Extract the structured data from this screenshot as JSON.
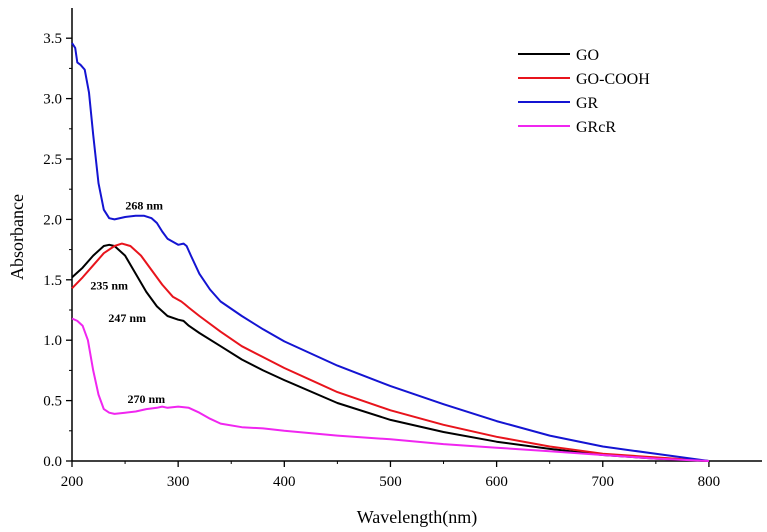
{
  "chart_data": {
    "type": "line",
    "title": "",
    "xlabel": "Wavelength(nm)",
    "ylabel": "Absorbance",
    "xlim": [
      200,
      850
    ],
    "ylim": [
      0,
      3.75
    ],
    "xticks": [
      200,
      300,
      400,
      500,
      600,
      700,
      800
    ],
    "xtick_labels": [
      "200",
      "300",
      "400",
      "500",
      "600",
      "700",
      "800"
    ],
    "yticks": [
      0,
      0.5,
      1.0,
      1.5,
      2.0,
      2.5,
      3.0,
      3.5
    ],
    "ytick_labels": [
      "0.0",
      "0.5",
      "1.0",
      "1.5",
      "2.0",
      "2.5",
      "3.0",
      "3.5"
    ],
    "grid": false,
    "legend_position": "top-right",
    "series": [
      {
        "name": "GO",
        "color": "#000000",
        "points": [
          [
            200,
            1.52
          ],
          [
            210,
            1.6
          ],
          [
            220,
            1.7
          ],
          [
            230,
            1.78
          ],
          [
            235,
            1.79
          ],
          [
            240,
            1.78
          ],
          [
            250,
            1.7
          ],
          [
            260,
            1.55
          ],
          [
            270,
            1.4
          ],
          [
            280,
            1.28
          ],
          [
            290,
            1.2
          ],
          [
            300,
            1.17
          ],
          [
            305,
            1.16
          ],
          [
            310,
            1.12
          ],
          [
            320,
            1.06
          ],
          [
            340,
            0.95
          ],
          [
            360,
            0.84
          ],
          [
            380,
            0.75
          ],
          [
            400,
            0.67
          ],
          [
            450,
            0.48
          ],
          [
            500,
            0.34
          ],
          [
            550,
            0.24
          ],
          [
            600,
            0.16
          ],
          [
            650,
            0.1
          ],
          [
            700,
            0.05
          ],
          [
            750,
            0.02
          ],
          [
            800,
            0.0
          ]
        ]
      },
      {
        "name": "GO-COOH",
        "color": "#e8141c",
        "points": [
          [
            200,
            1.43
          ],
          [
            210,
            1.52
          ],
          [
            220,
            1.62
          ],
          [
            230,
            1.72
          ],
          [
            240,
            1.78
          ],
          [
            247,
            1.8
          ],
          [
            255,
            1.78
          ],
          [
            265,
            1.7
          ],
          [
            275,
            1.58
          ],
          [
            285,
            1.46
          ],
          [
            295,
            1.36
          ],
          [
            303,
            1.32
          ],
          [
            306,
            1.3
          ],
          [
            310,
            1.27
          ],
          [
            320,
            1.2
          ],
          [
            340,
            1.07
          ],
          [
            360,
            0.95
          ],
          [
            380,
            0.86
          ],
          [
            400,
            0.77
          ],
          [
            450,
            0.57
          ],
          [
            500,
            0.42
          ],
          [
            550,
            0.3
          ],
          [
            600,
            0.2
          ],
          [
            650,
            0.12
          ],
          [
            700,
            0.06
          ],
          [
            750,
            0.03
          ],
          [
            800,
            0.0
          ]
        ]
      },
      {
        "name": "GR",
        "color": "#1414d2",
        "points": [
          [
            200,
            3.46
          ],
          [
            203,
            3.42
          ],
          [
            205,
            3.3
          ],
          [
            208,
            3.28
          ],
          [
            212,
            3.24
          ],
          [
            216,
            3.05
          ],
          [
            220,
            2.7
          ],
          [
            225,
            2.3
          ],
          [
            230,
            2.08
          ],
          [
            235,
            2.01
          ],
          [
            240,
            2.0
          ],
          [
            250,
            2.02
          ],
          [
            260,
            2.03
          ],
          [
            268,
            2.03
          ],
          [
            275,
            2.01
          ],
          [
            280,
            1.97
          ],
          [
            285,
            1.9
          ],
          [
            290,
            1.84
          ],
          [
            300,
            1.79
          ],
          [
            305,
            1.8
          ],
          [
            308,
            1.78
          ],
          [
            312,
            1.7
          ],
          [
            320,
            1.55
          ],
          [
            330,
            1.42
          ],
          [
            340,
            1.32
          ],
          [
            360,
            1.2
          ],
          [
            380,
            1.09
          ],
          [
            400,
            0.99
          ],
          [
            450,
            0.79
          ],
          [
            500,
            0.62
          ],
          [
            550,
            0.47
          ],
          [
            600,
            0.33
          ],
          [
            650,
            0.21
          ],
          [
            700,
            0.12
          ],
          [
            750,
            0.06
          ],
          [
            800,
            0.0
          ]
        ]
      },
      {
        "name": "GRcR",
        "color": "#f026f0",
        "points": [
          [
            200,
            1.18
          ],
          [
            205,
            1.16
          ],
          [
            210,
            1.12
          ],
          [
            215,
            1.0
          ],
          [
            220,
            0.75
          ],
          [
            225,
            0.55
          ],
          [
            230,
            0.43
          ],
          [
            235,
            0.4
          ],
          [
            240,
            0.39
          ],
          [
            250,
            0.4
          ],
          [
            260,
            0.41
          ],
          [
            270,
            0.43
          ],
          [
            280,
            0.44
          ],
          [
            285,
            0.45
          ],
          [
            290,
            0.44
          ],
          [
            300,
            0.45
          ],
          [
            310,
            0.44
          ],
          [
            320,
            0.4
          ],
          [
            330,
            0.35
          ],
          [
            340,
            0.31
          ],
          [
            360,
            0.28
          ],
          [
            380,
            0.27
          ],
          [
            400,
            0.25
          ],
          [
            450,
            0.21
          ],
          [
            500,
            0.18
          ],
          [
            550,
            0.14
          ],
          [
            600,
            0.11
          ],
          [
            650,
            0.08
          ],
          [
            700,
            0.05
          ],
          [
            750,
            0.02
          ],
          [
            800,
            0.0
          ]
        ]
      }
    ],
    "annotations": [
      {
        "text": "268 nm",
        "x": 268,
        "y": 2.08
      },
      {
        "text": "235 nm",
        "x": 235,
        "y": 1.42
      },
      {
        "text": "247 nm",
        "x": 252,
        "y": 1.15
      },
      {
        "text": "270 nm",
        "x": 270,
        "y": 0.48
      }
    ]
  }
}
